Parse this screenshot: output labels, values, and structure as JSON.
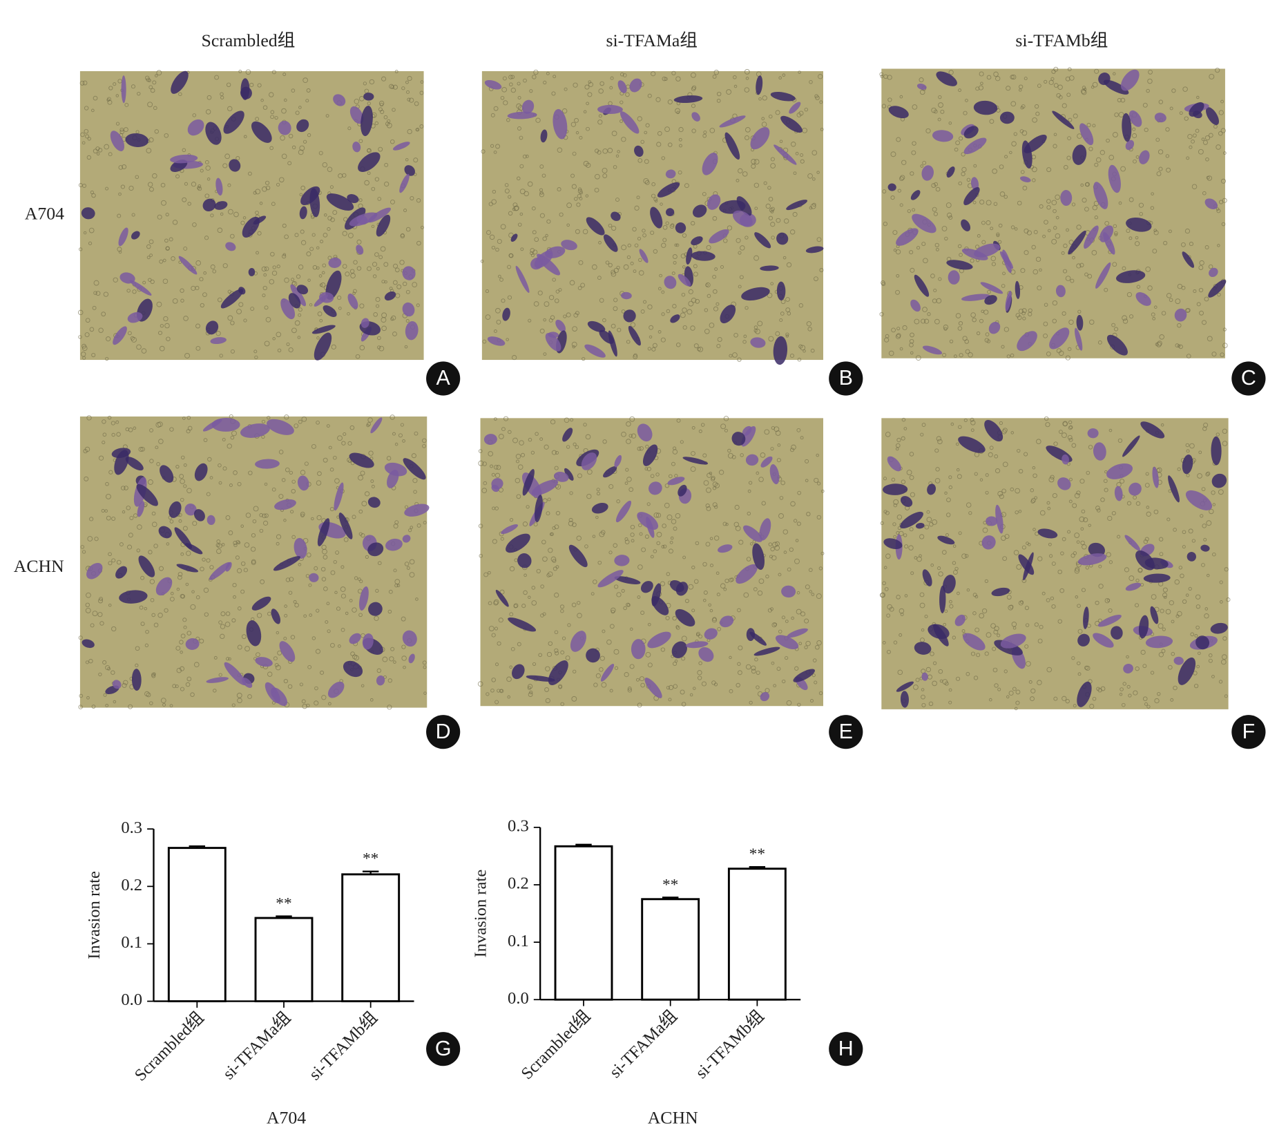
{
  "column_headers": [
    "Scrambled组",
    "si-TFAMa组",
    "si-TFAMb组"
  ],
  "row_labels": [
    "A704",
    "ACHN"
  ],
  "panels": [
    "A",
    "B",
    "C",
    "D",
    "E",
    "F"
  ],
  "chart_data": [
    {
      "type": "bar",
      "panel": "G",
      "x_label": "A704",
      "y_label": "Invasion rate",
      "categories": [
        "Scrambled组",
        "si-TFAMa组",
        "si-TFAMb组"
      ],
      "values": [
        0.267,
        0.145,
        0.221
      ],
      "errors": [
        0.003,
        0.003,
        0.005
      ],
      "significance": [
        null,
        "**",
        "**"
      ],
      "color": "#ffffff",
      "ylim": [
        0,
        0.3
      ],
      "yticks": [
        {
          "value": 0,
          "label": "0.0"
        },
        0.1,
        0.2,
        0.3
      ]
    },
    {
      "type": "bar",
      "panel": "H",
      "x_label": "ACHN",
      "y_label": "Invasion rate",
      "categories": [
        "Scrambled组",
        "si-TFAMa组",
        "si-TFAMb组"
      ],
      "values": [
        0.267,
        0.175,
        0.228
      ],
      "errors": [
        0.003,
        0.003,
        0.003
      ],
      "significance": [
        null,
        "**",
        "**"
      ],
      "color": "#ffffff",
      "ylim": [
        0,
        0.3
      ],
      "yticks": [
        {
          "value": 0,
          "label": "0.0"
        },
        0.1,
        0.2,
        0.3
      ]
    }
  ]
}
